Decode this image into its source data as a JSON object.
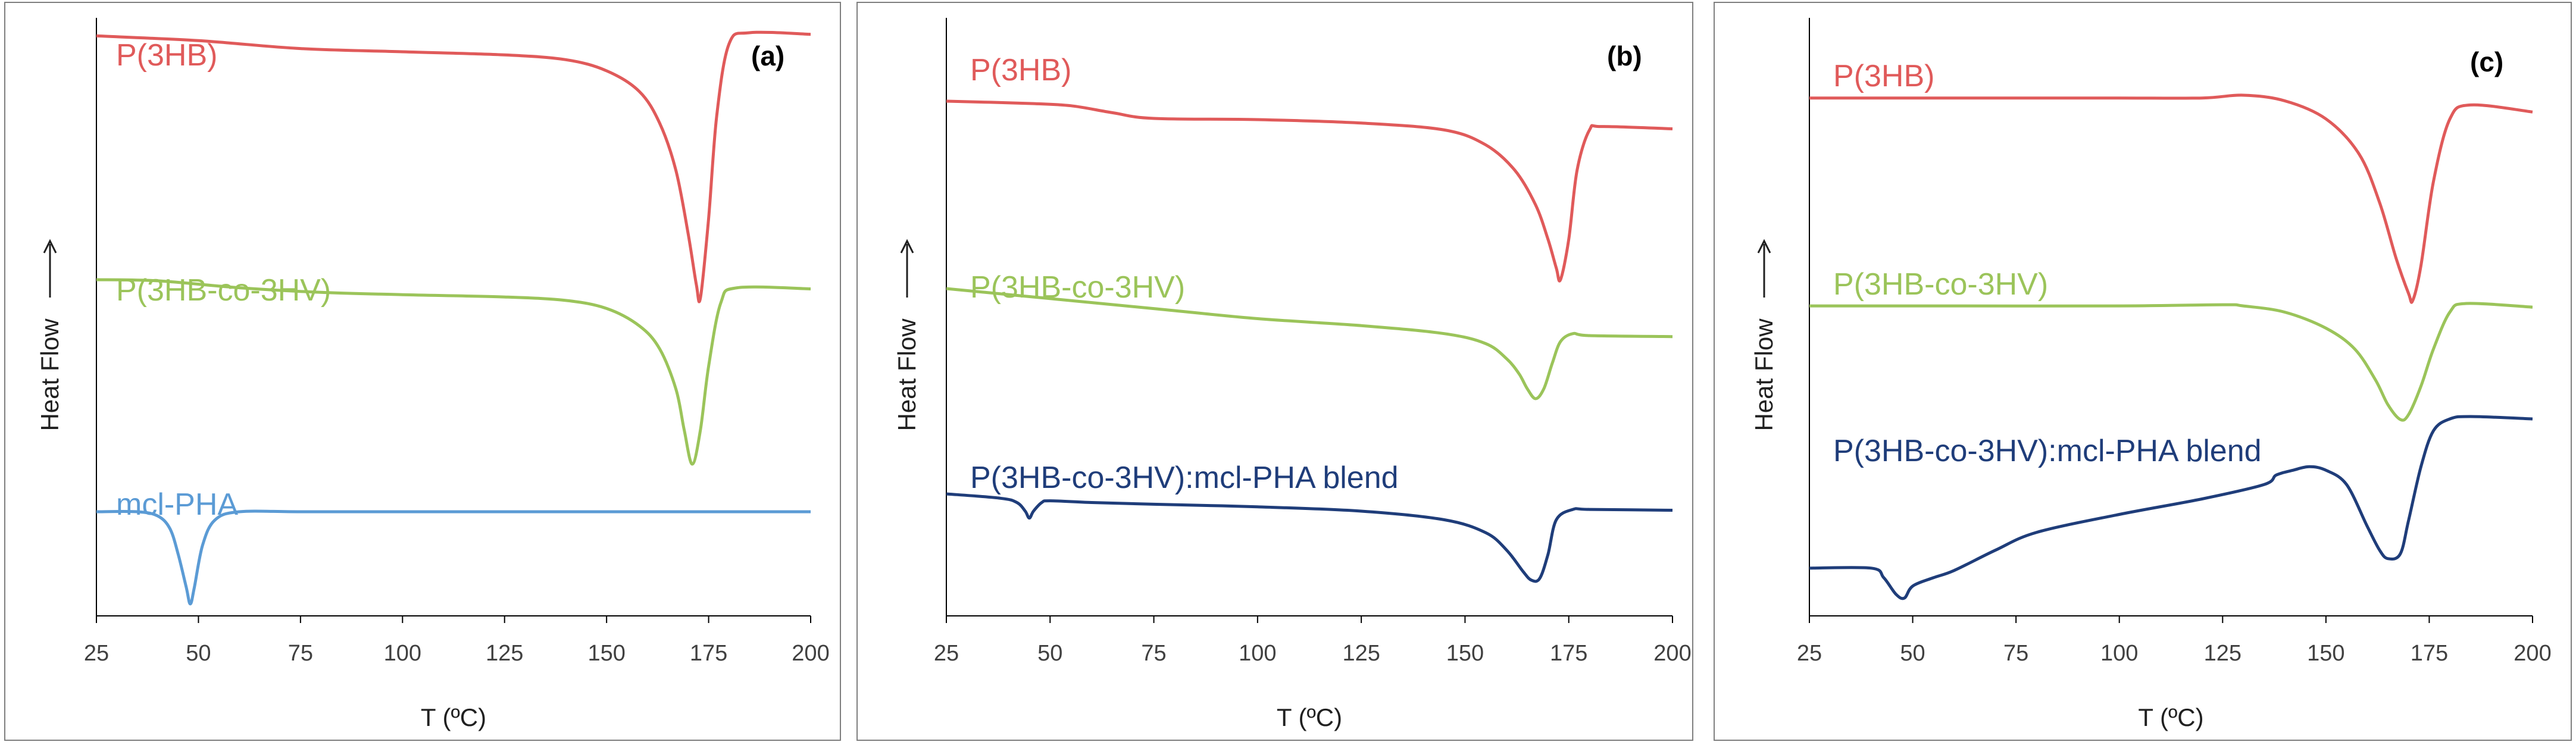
{
  "chart_data": [
    {
      "panel": "(a)",
      "type": "line",
      "xlabel": "T (ºC)",
      "ylabel": "Heat Flow",
      "xlim": [
        25,
        200
      ],
      "xticks": [
        25,
        50,
        75,
        100,
        125,
        150,
        175,
        200
      ],
      "series": [
        {
          "name": "P(3HB)",
          "color": "#e05a5a",
          "x": [
            25,
            50,
            75,
            100,
            125,
            140,
            150,
            158,
            163,
            167,
            170,
            172,
            173,
            175,
            177,
            180,
            185,
            200
          ],
          "y": [
            0.55,
            0.52,
            0.47,
            0.45,
            0.43,
            0.4,
            0.33,
            0.2,
            0.0,
            -0.3,
            -0.7,
            -1.02,
            -1.1,
            -0.6,
            0.05,
            0.5,
            0.57,
            0.56
          ]
        },
        {
          "name": "P(3HB-co-3HV)",
          "color": "#9bc45a",
          "x": [
            25,
            40,
            60,
            80,
            100,
            125,
            140,
            150,
            158,
            163,
            167,
            169,
            171,
            173,
            175,
            178,
            182,
            200
          ],
          "y": [
            0.55,
            0.54,
            0.48,
            0.44,
            0.42,
            0.4,
            0.37,
            0.3,
            0.15,
            -0.05,
            -0.4,
            -0.75,
            -1.05,
            -0.75,
            -0.2,
            0.35,
            0.48,
            0.47
          ]
        },
        {
          "name": "mcl-PHA",
          "color": "#5b9bd5",
          "x": [
            25,
            35,
            40,
            43,
            45,
            47,
            48,
            49,
            51,
            54,
            60,
            75,
            100,
            200
          ],
          "y": [
            0.0,
            0.0,
            -0.05,
            -0.2,
            -0.5,
            -0.9,
            -1.1,
            -0.9,
            -0.4,
            -0.1,
            0.0,
            0.0,
            0.0,
            0.0
          ]
        }
      ]
    },
    {
      "panel": "(b)",
      "type": "line",
      "xlabel": "T (ºC)",
      "ylabel": "Heat Flow",
      "xlim": [
        25,
        200
      ],
      "xticks": [
        25,
        50,
        75,
        100,
        125,
        150,
        175,
        200
      ],
      "series": [
        {
          "name": "P(3HB)",
          "color": "#e05a5a",
          "x": [
            25,
            45,
            55,
            65,
            75,
            100,
            125,
            145,
            155,
            162,
            167,
            170,
            172,
            173,
            175,
            177,
            180,
            183,
            200
          ],
          "y": [
            0.3,
            0.28,
            0.26,
            0.2,
            0.15,
            0.14,
            0.11,
            0.05,
            -0.08,
            -0.3,
            -0.6,
            -0.9,
            -1.15,
            -1.25,
            -0.9,
            -0.3,
            0.05,
            0.08,
            0.06
          ]
        },
        {
          "name": "P(3HB-co-3HV)",
          "color": "#9bc45a",
          "x": [
            25,
            50,
            75,
            100,
            125,
            145,
            155,
            160,
            163,
            165,
            167,
            169,
            171,
            173,
            176,
            180,
            200
          ],
          "y": [
            0.55,
            0.45,
            0.35,
            0.25,
            0.18,
            0.1,
            0.0,
            -0.15,
            -0.3,
            -0.45,
            -0.55,
            -0.45,
            -0.2,
            0.02,
            0.1,
            0.08,
            0.07
          ]
        },
        {
          "name": "P(3HB-co-3HV):mcl-PHA  blend",
          "color": "#1f3d7a",
          "x": [
            25,
            38,
            42,
            44,
            45,
            46,
            48,
            50,
            60,
            75,
            100,
            125,
            145,
            155,
            160,
            164,
            166,
            168,
            170,
            172,
            176,
            180,
            200
          ],
          "y": [
            0.1,
            0.05,
            0.0,
            -0.1,
            -0.18,
            -0.1,
            0.0,
            0.02,
            0.0,
            -0.02,
            -0.05,
            -0.1,
            -0.2,
            -0.35,
            -0.55,
            -0.8,
            -0.9,
            -0.88,
            -0.6,
            -0.2,
            -0.08,
            -0.08,
            -0.09
          ]
        }
      ]
    },
    {
      "panel": "(c)",
      "type": "line",
      "xlabel": "T (ºC)",
      "ylabel": "Heat Flow",
      "xlim": [
        25,
        200
      ],
      "xticks": [
        25,
        50,
        75,
        100,
        125,
        150,
        175,
        200
      ],
      "series": [
        {
          "name": "P(3HB)",
          "color": "#e05a5a",
          "x": [
            25,
            50,
            75,
            100,
            120,
            130,
            140,
            150,
            158,
            163,
            167,
            170,
            171,
            173,
            176,
            180,
            185,
            200
          ],
          "y": [
            0.3,
            0.3,
            0.3,
            0.3,
            0.3,
            0.32,
            0.28,
            0.15,
            -0.1,
            -0.45,
            -0.85,
            -1.1,
            -1.15,
            -0.9,
            -0.3,
            0.15,
            0.25,
            0.2
          ]
        },
        {
          "name": "P(3HB-co-3HV)",
          "color": "#9bc45a",
          "x": [
            25,
            50,
            100,
            125,
            130,
            140,
            150,
            157,
            162,
            165,
            168,
            170,
            173,
            176,
            180,
            184,
            200
          ],
          "y": [
            0.3,
            0.3,
            0.3,
            0.31,
            0.3,
            0.25,
            0.12,
            -0.05,
            -0.3,
            -0.5,
            -0.62,
            -0.58,
            -0.35,
            -0.05,
            0.25,
            0.32,
            0.29
          ]
        },
        {
          "name": "P(3HB-co-3HV):mcl-PHA  blend",
          "color": "#1f3d7a",
          "x": [
            25,
            40,
            43,
            46,
            48,
            50,
            55,
            60,
            70,
            80,
            100,
            120,
            135,
            138,
            142,
            146,
            150,
            155,
            160,
            163,
            165,
            168,
            170,
            173,
            176,
            180,
            185,
            200
          ],
          "y": [
            -0.7,
            -0.7,
            -0.78,
            -0.92,
            -0.95,
            -0.85,
            -0.78,
            -0.72,
            -0.55,
            -0.4,
            -0.25,
            -0.12,
            0.0,
            0.08,
            0.12,
            0.15,
            0.12,
            0.0,
            -0.35,
            -0.55,
            -0.62,
            -0.58,
            -0.3,
            0.15,
            0.45,
            0.55,
            0.57,
            0.55
          ]
        }
      ]
    }
  ]
}
